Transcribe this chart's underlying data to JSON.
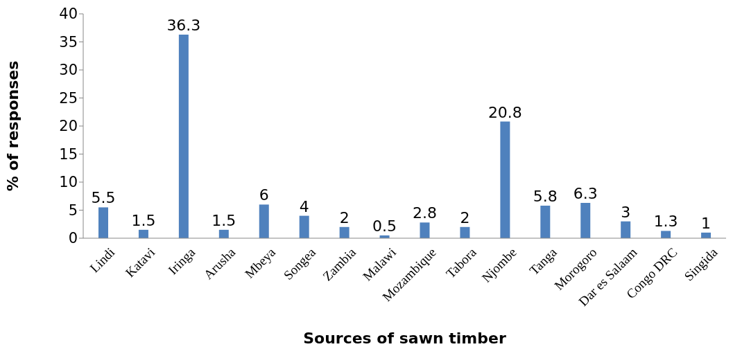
{
  "chart_data": {
    "type": "bar",
    "xlabel": "Sources of sawn timber",
    "ylabel": "% of responses",
    "categories": [
      "Lindi",
      "Katavi",
      "Iringa",
      "Arusha",
      "Mbeya",
      "Songea",
      "Zambia",
      "Malawi",
      "Mozambique",
      "Tabora",
      "Njombe",
      "Tanga",
      "Morogoro",
      "Dar es Salaam",
      "Congo DRC",
      "Singida"
    ],
    "values": [
      5.5,
      1.5,
      36.3,
      1.5,
      6,
      4,
      2,
      0.5,
      2.8,
      2,
      20.8,
      5.8,
      6.3,
      3,
      1.3,
      1
    ],
    "color": "#4f81bd",
    "ylim": [
      0,
      40
    ],
    "yticks": [
      0,
      5,
      10,
      15,
      20,
      25,
      30,
      35,
      40
    ],
    "grid": false,
    "data_labels": true
  }
}
